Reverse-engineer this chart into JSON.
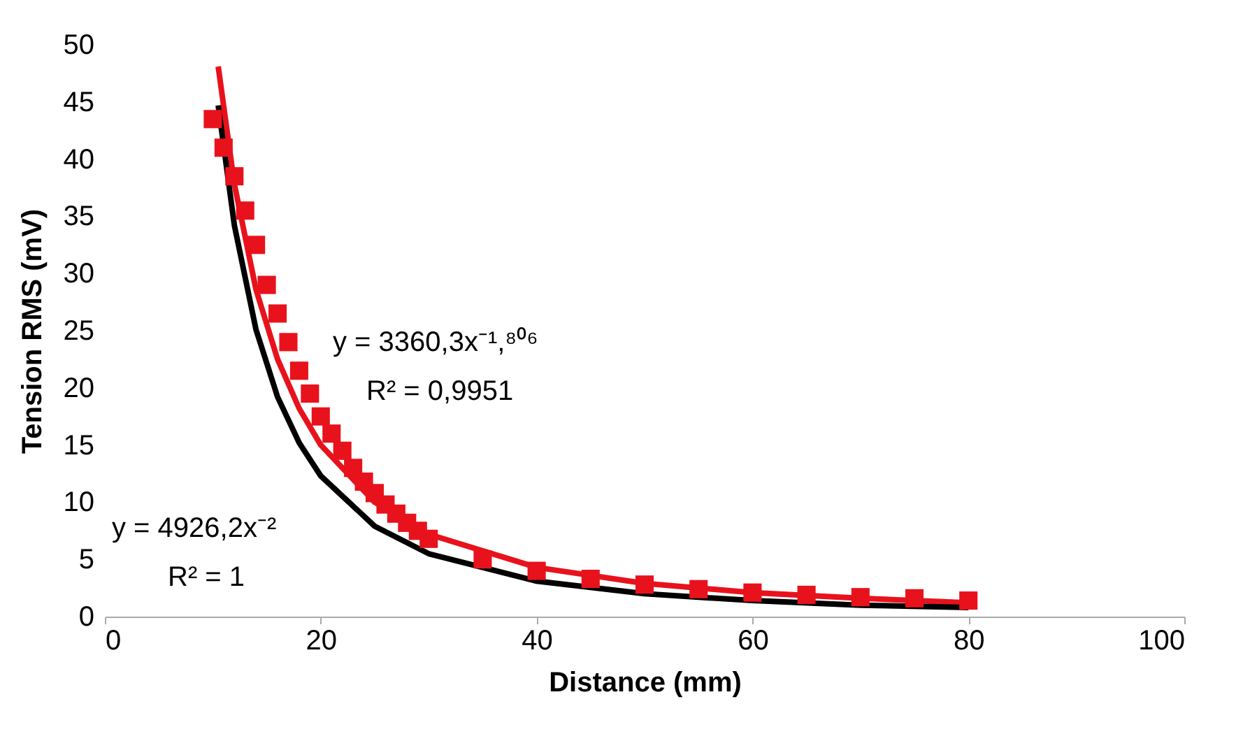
{
  "chart_data": {
    "type": "scatter",
    "xlabel": "Distance (mm)",
    "ylabel": "Tension RMS (mV)",
    "xlim": [
      0,
      100
    ],
    "xticks": [
      0,
      20,
      40,
      60,
      80,
      100
    ],
    "ylim": [
      0,
      50
    ],
    "yticks": [
      0,
      5,
      10,
      15,
      20,
      25,
      30,
      35,
      40,
      45,
      50
    ],
    "grid": false,
    "series": [
      {
        "type": "scatter",
        "marker": "square",
        "color": "#e8121c",
        "x": [
          10,
          11,
          12,
          13,
          14,
          15,
          16,
          17,
          18,
          19,
          20,
          21,
          22,
          23,
          24,
          25,
          26,
          27,
          28,
          29,
          30,
          35,
          40,
          45,
          50,
          55,
          60,
          65,
          70,
          75,
          80
        ],
        "values": [
          43.5,
          41,
          38.5,
          35.5,
          32.5,
          29,
          26.5,
          24,
          21.5,
          19.5,
          17.5,
          16,
          14.5,
          13,
          11.8,
          10.8,
          9.8,
          9,
          8.2,
          7.5,
          6.8,
          5,
          4,
          3.3,
          2.8,
          2.4,
          2.1,
          1.9,
          1.7,
          1.6,
          1.4
        ]
      },
      {
        "type": "line",
        "marker": "none",
        "line_style": "solid",
        "color": "#e8121c",
        "x": [
          10.5,
          12,
          14,
          16,
          18,
          20,
          25,
          30,
          40,
          50,
          60,
          70,
          80
        ],
        "values": [
          48.1,
          37.8,
          28.6,
          22.5,
          18.2,
          15.0,
          10.0,
          7.2,
          4.3,
          2.9,
          2.1,
          1.6,
          1.2
        ]
      },
      {
        "type": "line",
        "marker": "none",
        "line_style": "solid",
        "color": "#000000",
        "x": [
          10.5,
          12,
          14,
          16,
          18,
          20,
          25,
          30,
          40,
          50,
          60,
          70,
          80
        ],
        "values": [
          44.7,
          34.2,
          25.1,
          19.2,
          15.2,
          12.3,
          7.9,
          5.5,
          3.1,
          2.0,
          1.4,
          1.0,
          0.8
        ]
      }
    ],
    "annotations": [
      "y = 3360,3x⁻¹,⁸⁰⁶",
      "R² = 0,9951",
      "y = 4926,2x⁻²",
      "R² = 1"
    ]
  }
}
